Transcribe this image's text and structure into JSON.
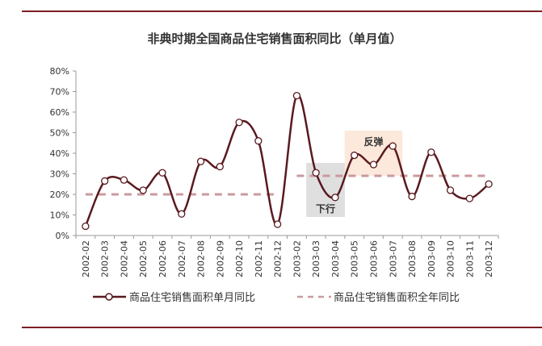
{
  "chart_data": {
    "type": "line",
    "title": "非典时期全国商品住宅销售面积同比（单月值）",
    "categories": [
      "2002-02",
      "2002-03",
      "2002-04",
      "2002-05",
      "2002-06",
      "2002-07",
      "2002-08",
      "2002-09",
      "2002-10",
      "2002-11",
      "2002-12",
      "2003-02",
      "2003-03",
      "2003-04",
      "2003-05",
      "2003-06",
      "2003-07",
      "2003-08",
      "2003-09",
      "2003-10",
      "2003-11",
      "2003-12"
    ],
    "ylim": [
      0,
      80
    ],
    "yticks": [
      "0%",
      "10%",
      "20%",
      "30%",
      "40%",
      "50%",
      "60%",
      "70%",
      "80%"
    ],
    "grid": false,
    "legend_placement": "bottom",
    "series": [
      {
        "name": "商品住宅销售面积单月同比",
        "style": "smooth-line-with-circle-markers",
        "color": "#5a1a1f",
        "values": [
          4.5,
          26.5,
          27,
          22,
          30.5,
          10.5,
          36,
          33.5,
          55,
          46,
          5.5,
          68,
          30.5,
          18.5,
          39,
          34.5,
          43.5,
          19,
          40.5,
          22,
          18,
          25
        ]
      },
      {
        "name": "商品住宅销售面积全年同比",
        "style": "dashed",
        "color": "#c99a9e",
        "segments": [
          {
            "from": "2002-02",
            "to": "2002-12",
            "value": 20
          },
          {
            "from": "2003-02",
            "to": "2003-12",
            "value": 29
          }
        ]
      }
    ],
    "annotations": [
      {
        "text": "下行",
        "from": "2003-03",
        "to": "2003-04",
        "color": "#d9d9d9"
      },
      {
        "text": "反弹",
        "from": "2003-05",
        "to": "2003-07",
        "color": "#fbe5d6"
      }
    ]
  },
  "colors": {
    "frame": "#7b1e23"
  }
}
